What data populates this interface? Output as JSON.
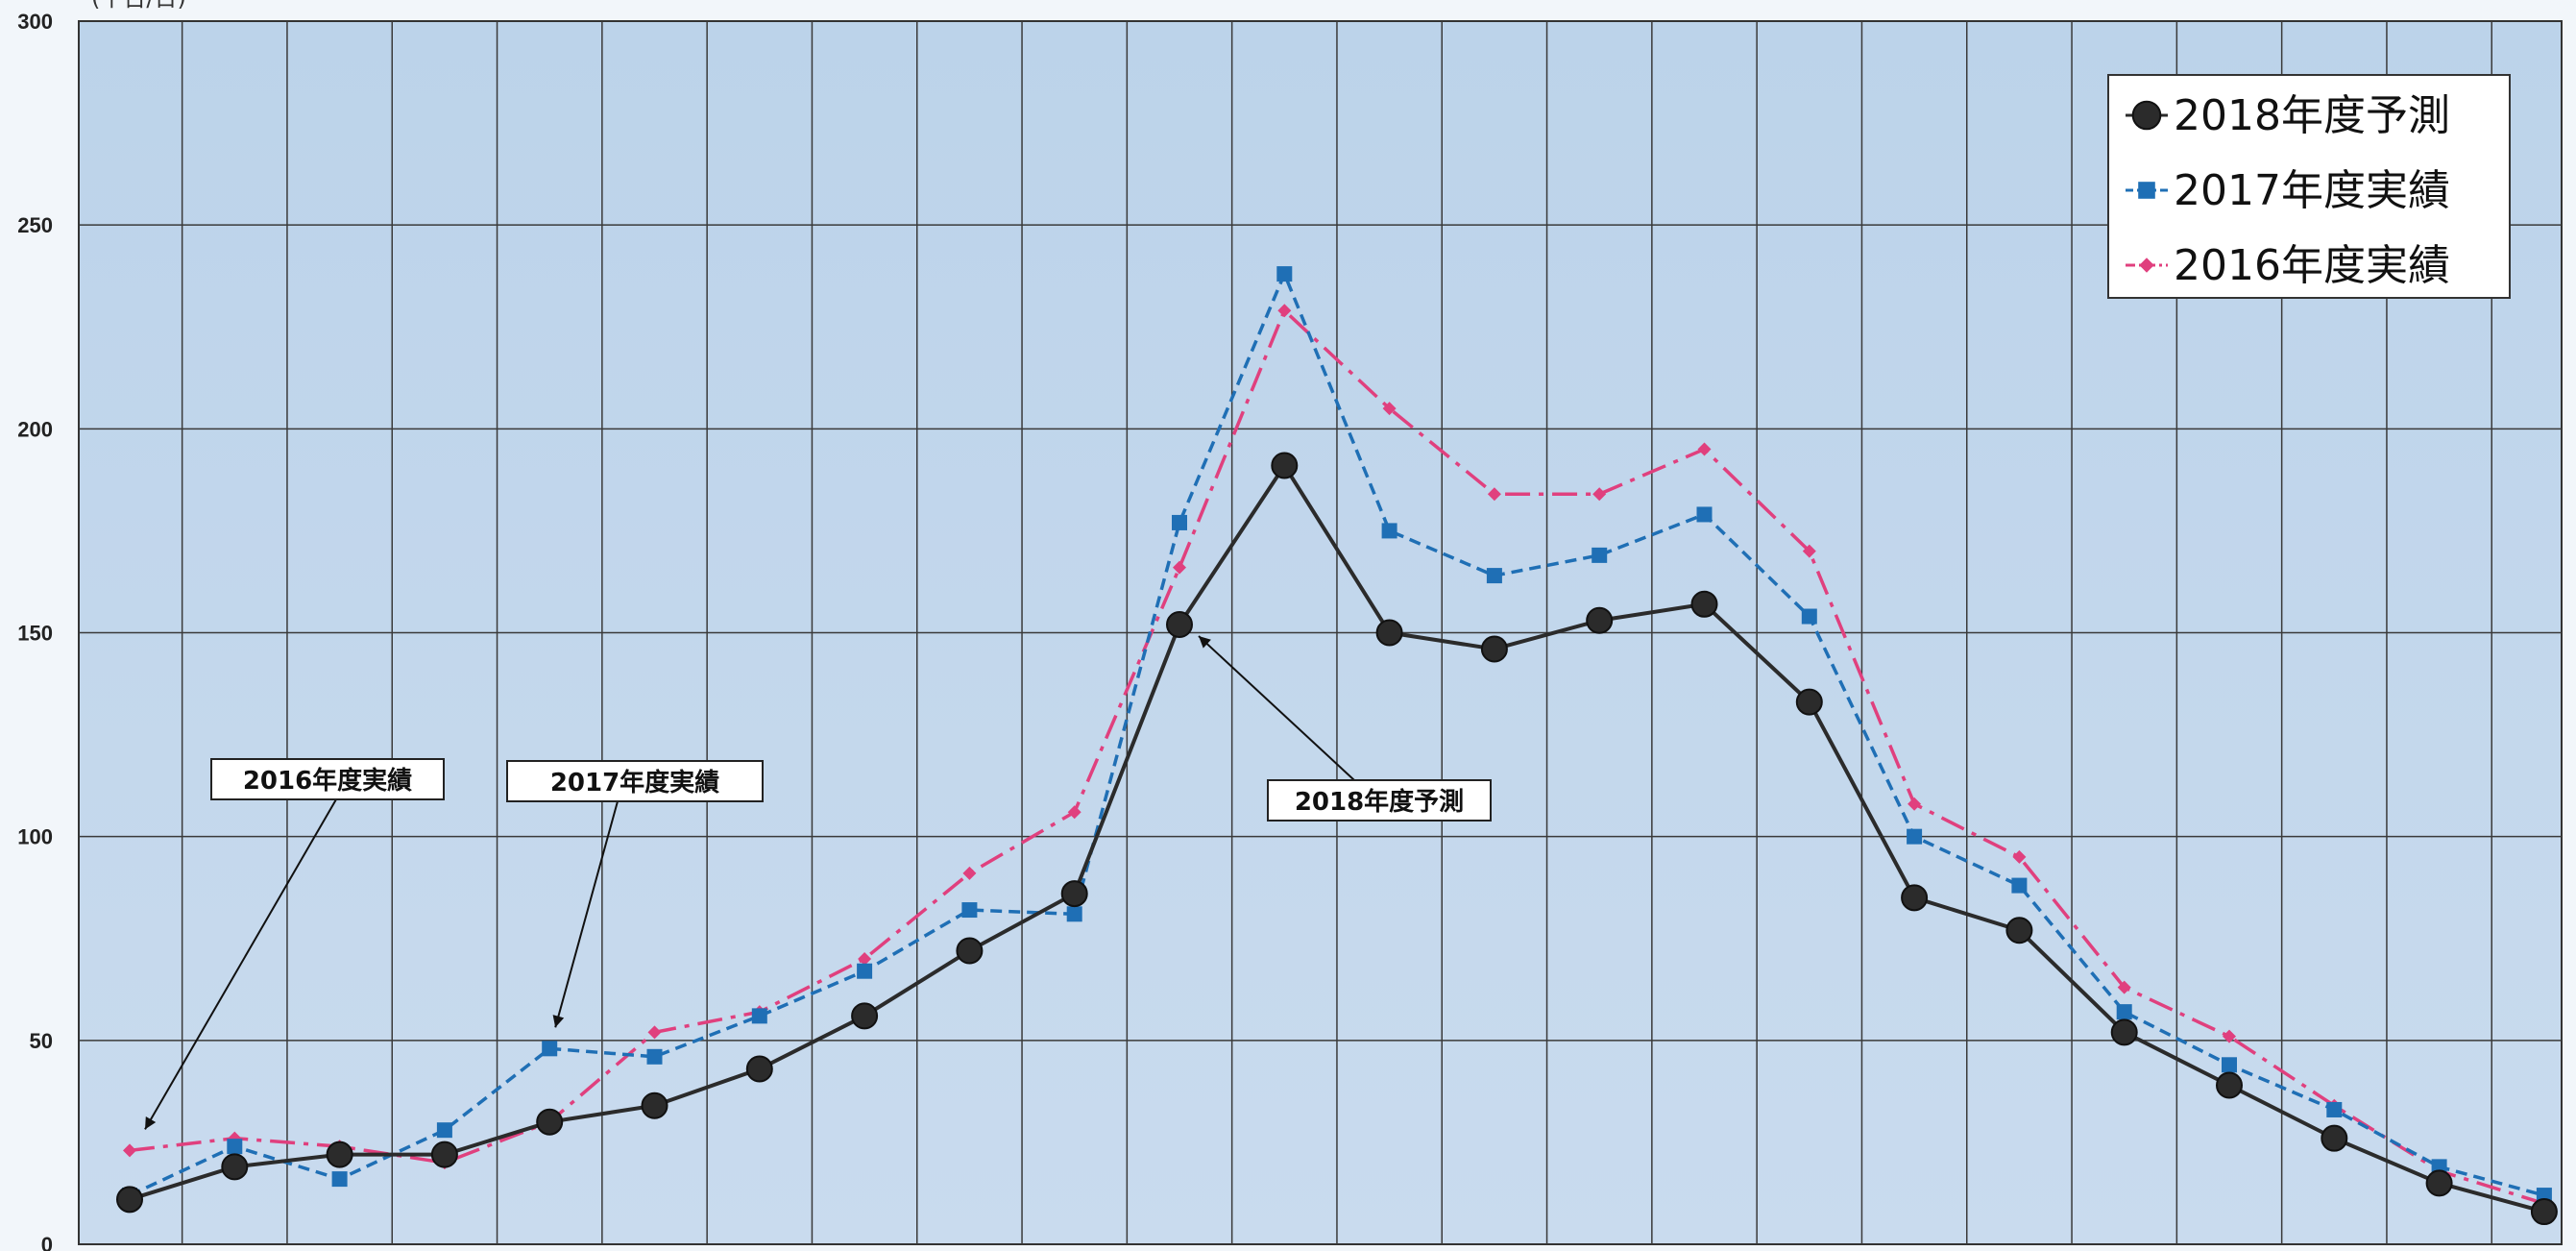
{
  "chart_data": {
    "type": "line",
    "title": "",
    "subtitle": "",
    "corner_label": "(千台/日)",
    "xlabel": "",
    "ylabel": "",
    "ylim": [
      0,
      300
    ],
    "yticks": [
      0,
      50,
      100,
      150,
      200,
      250,
      300
    ],
    "grid": true,
    "legend_position": "top-right",
    "x": [
      1,
      2,
      3,
      4,
      5,
      6,
      7,
      8,
      9,
      10,
      11,
      12,
      13,
      14,
      15,
      16,
      17,
      18,
      19,
      20,
      21,
      22,
      23,
      24
    ],
    "series": [
      {
        "name": "2018年度予測",
        "color": "#2b2b2b",
        "marker": "circle",
        "line_style": "solid",
        "values": [
          11,
          19,
          22,
          22,
          30,
          34,
          43,
          56,
          72,
          86,
          152,
          191,
          150,
          146,
          153,
          157,
          133,
          85,
          77,
          52,
          39,
          26,
          15,
          8
        ]
      },
      {
        "name": "2017年度実績",
        "color": "#1f6fb5",
        "marker": "square",
        "line_style": "dashed",
        "values": [
          12,
          24,
          16,
          28,
          48,
          46,
          56,
          67,
          82,
          81,
          177,
          238,
          175,
          164,
          169,
          179,
          154,
          100,
          88,
          57,
          44,
          33,
          19,
          12
        ]
      },
      {
        "name": "2016年度実績",
        "color": "#e0407e",
        "marker": "diamond",
        "line_style": "dash-dot",
        "values": [
          23,
          26,
          24,
          20,
          30,
          52,
          57,
          70,
          91,
          106,
          166,
          229,
          205,
          184,
          184,
          195,
          170,
          108,
          95,
          63,
          51,
          34,
          18,
          10
        ]
      }
    ],
    "annotations": [
      {
        "text": "2016年度実績",
        "series": "2016年度実績",
        "point_index": 0
      },
      {
        "text": "2017年度実績",
        "series": "2017年度実績",
        "point_index": 4
      },
      {
        "text": "2018年度予測",
        "series": "2018年度予測",
        "point_index": 10
      }
    ]
  }
}
